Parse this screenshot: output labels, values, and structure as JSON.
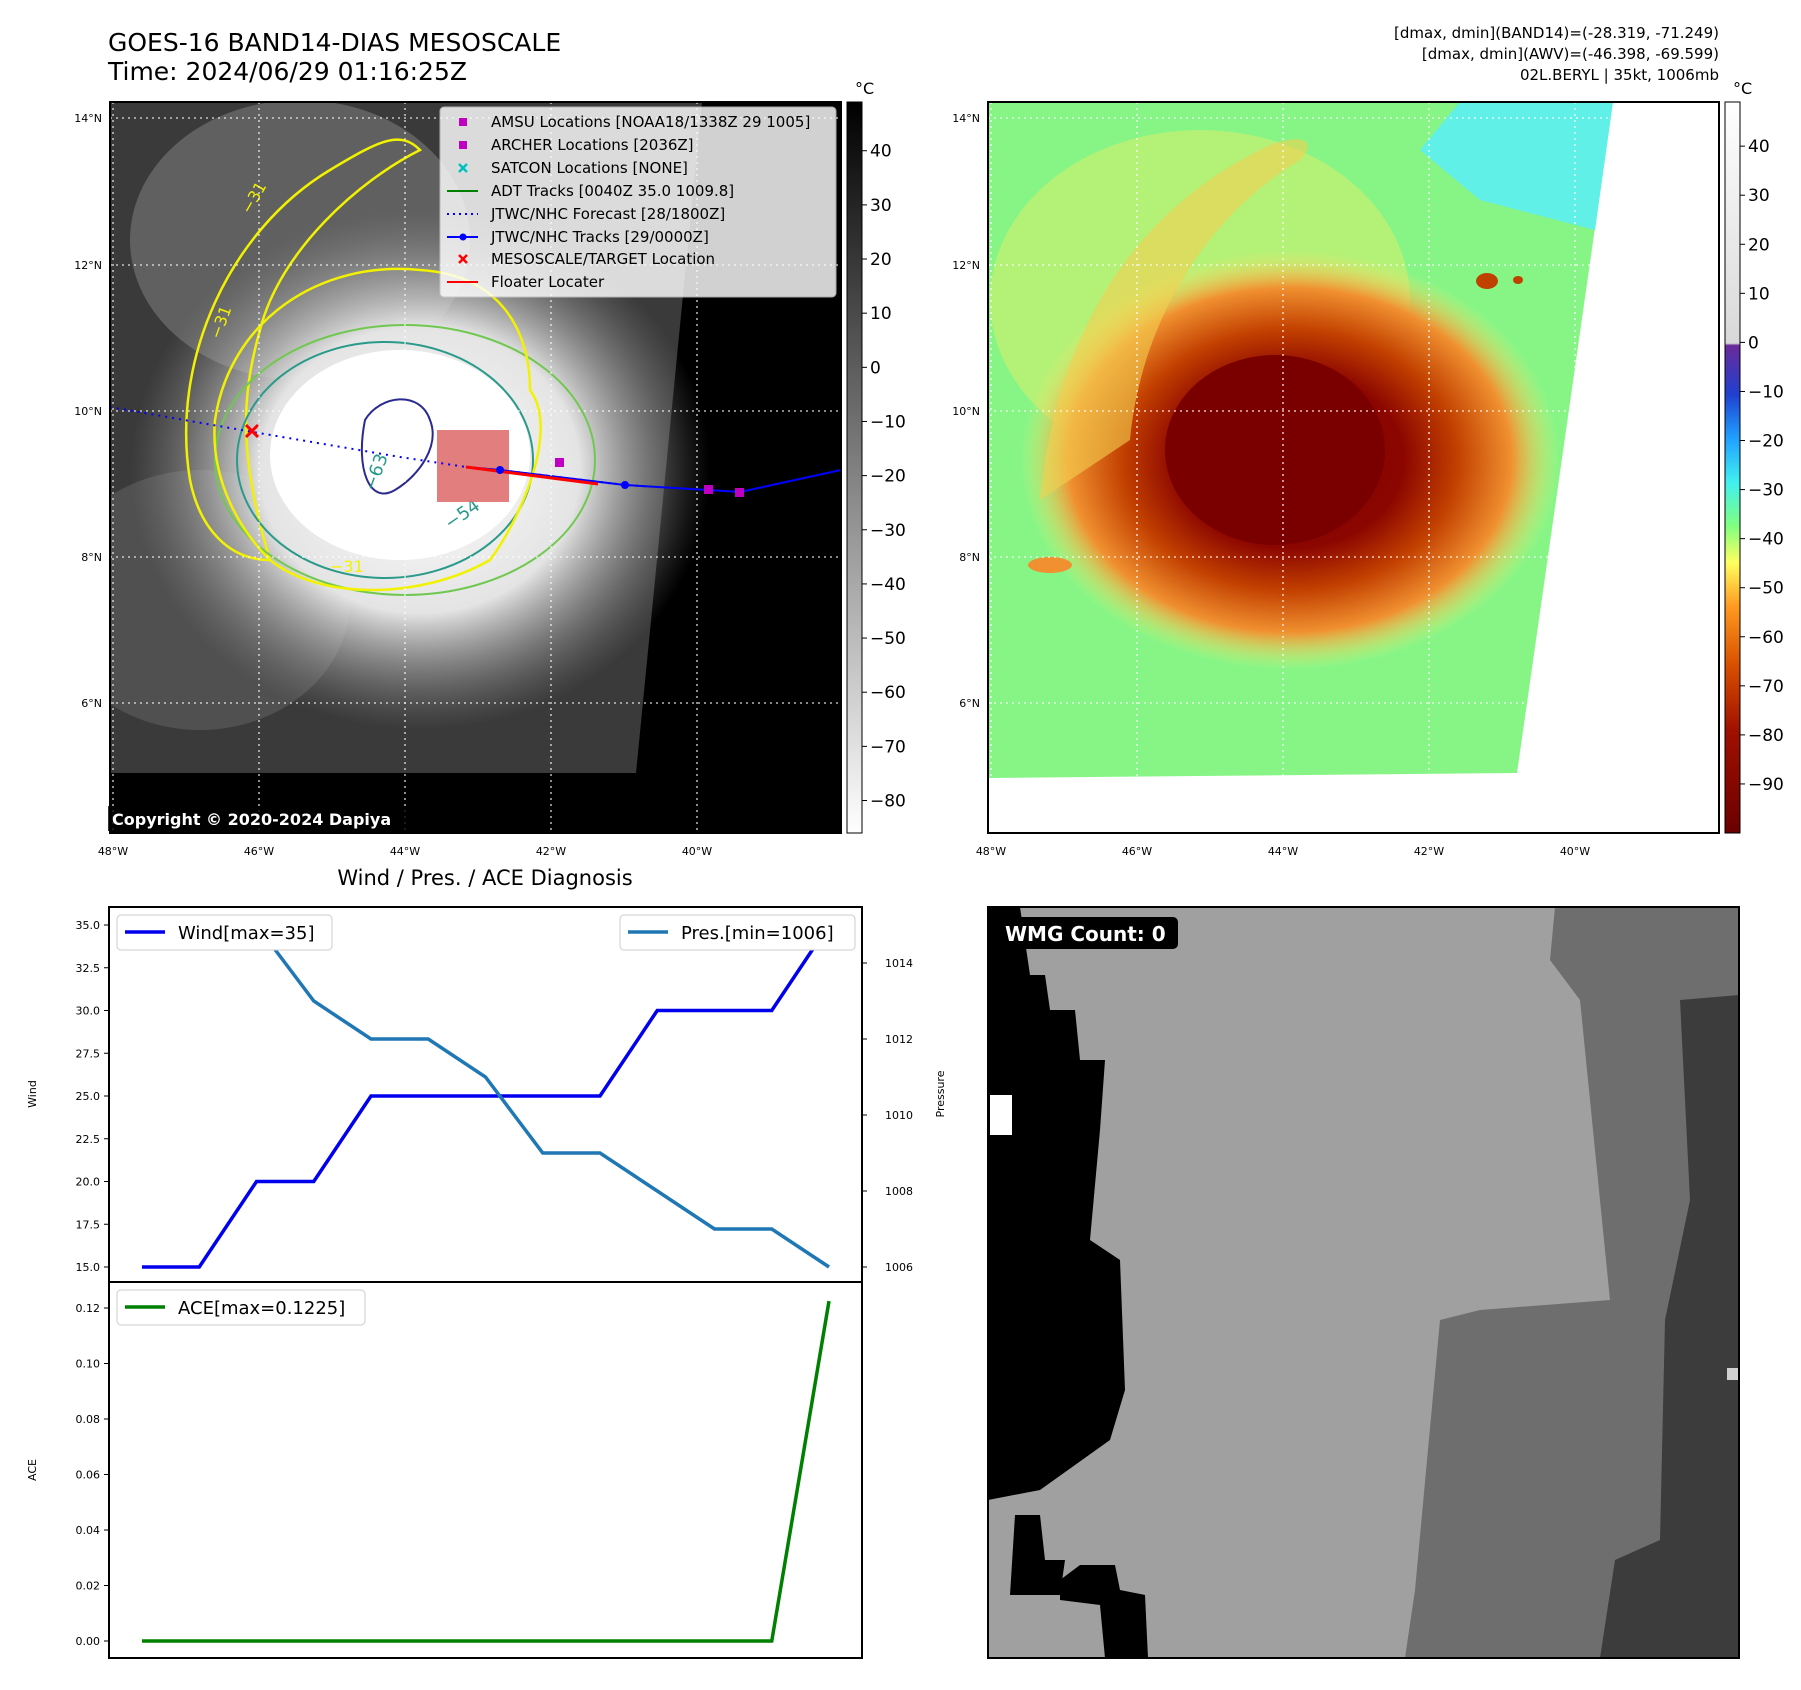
{
  "header": {
    "title_line1": "GOES-16 BAND14-DIAS MESOSCALE",
    "title_line2": "Time: 2024/06/29 01:16:25Z",
    "info_line1": "[dmax, dmin](BAND14)=(-28.319, -71.249)",
    "info_line2": "[dmax, dmin](AWV)=(-46.398, -69.599)",
    "info_line3": "02L.BERYL | 35kt, 1006mb"
  },
  "map_axes": {
    "lat_labels": [
      "14°N",
      "12°N",
      "10°N",
      "8°N",
      "6°N"
    ],
    "lon_labels": [
      "48°W",
      "46°W",
      "44°W",
      "42°W",
      "40°W"
    ]
  },
  "ir_panel": {
    "colorbar_unit": "°C",
    "colorbar_ticks": [
      "40",
      "30",
      "20",
      "10",
      "0",
      "−10",
      "−20",
      "−30",
      "−40",
      "−50",
      "−60",
      "−70",
      "−80"
    ],
    "contour_labels": [
      "−63",
      "−54",
      "−31",
      "−31",
      "−31"
    ],
    "copyright": "Copyright © 2020-2024 Dapiya",
    "legend": [
      {
        "label": "AMSU Locations [NOAA18/1338Z 29 1005]",
        "color": "#c000c0",
        "marker": "square"
      },
      {
        "label": "ARCHER Locations [2036Z]",
        "color": "#c000c0",
        "marker": "square"
      },
      {
        "label": "SATCON Locations [NONE]",
        "color": "#00bfbf",
        "marker": "x"
      },
      {
        "label": "ADT Tracks [0040Z 35.0 1009.8]",
        "color": "#008000",
        "marker": "line"
      },
      {
        "label": "JTWC/NHC Forecast [28/1800Z]",
        "color": "#0000ff",
        "marker": "dotted"
      },
      {
        "label": "JTWC/NHC Tracks [29/0000Z]",
        "color": "#0000ff",
        "marker": "line-dot"
      },
      {
        "label": "MESOSCALE/TARGET Location",
        "color": "#ff0000",
        "marker": "x"
      },
      {
        "label": "Floater Locater",
        "color": "#ff0000",
        "marker": "line"
      }
    ]
  },
  "awv_panel": {
    "colorbar_unit": "°C",
    "colorbar_ticks": [
      "40",
      "30",
      "20",
      "10",
      "0",
      "−10",
      "−20",
      "−30",
      "−40",
      "−50",
      "−60",
      "−70",
      "−80",
      "−90"
    ]
  },
  "diag_panel": {
    "title": "Wind / Pres. / ACE Diagnosis",
    "wind_axis_label": "Wind",
    "pressure_axis_label": "Pressure",
    "ace_axis_label": "ACE",
    "wind_legend": "Wind[max=35]",
    "pres_legend": "Pres.[min=1006]",
    "ace_legend": "ACE[max=0.1225]",
    "wind_ticks": [
      "35.0",
      "32.5",
      "30.0",
      "27.5",
      "25.0",
      "22.5",
      "20.0",
      "17.5",
      "15.0"
    ],
    "pres_ticks": [
      "1014",
      "1012",
      "1010",
      "1008",
      "1006"
    ],
    "ace_ticks": [
      "0.12",
      "0.10",
      "0.08",
      "0.06",
      "0.04",
      "0.02",
      "0.00"
    ]
  },
  "wmg_panel": {
    "label": "WMG Count: 0"
  },
  "colors": {
    "wind": "#0000ee",
    "pressure": "#1f77b4",
    "ace": "#008000",
    "track": "#0000ff",
    "target": "#ff0000"
  },
  "chart_data": [
    {
      "type": "line",
      "title": "Wind / Pres. / ACE Diagnosis",
      "ylabel": "Wind",
      "ylim": [
        15.0,
        35.0
      ],
      "series": [
        {
          "name": "Wind[max=35]",
          "values": [
            15,
            15,
            20,
            20,
            25,
            25,
            25,
            25,
            25,
            30,
            30,
            30,
            35
          ]
        },
        {
          "name": "Pres.[min=1006]",
          "axis": "right",
          "ylabel": "Pressure",
          "ylim": [
            1006,
            1014
          ],
          "values": [
            1015,
            1015,
            1015,
            1013,
            1012,
            1012,
            1011,
            1009,
            1009,
            1008,
            1007,
            1007,
            1006
          ]
        }
      ]
    },
    {
      "type": "line",
      "ylabel": "ACE",
      "ylim": [
        0.0,
        0.12
      ],
      "series": [
        {
          "name": "ACE[max=0.1225]",
          "values": [
            0,
            0,
            0,
            0,
            0,
            0,
            0,
            0,
            0,
            0,
            0,
            0,
            0.1225
          ]
        }
      ]
    }
  ]
}
